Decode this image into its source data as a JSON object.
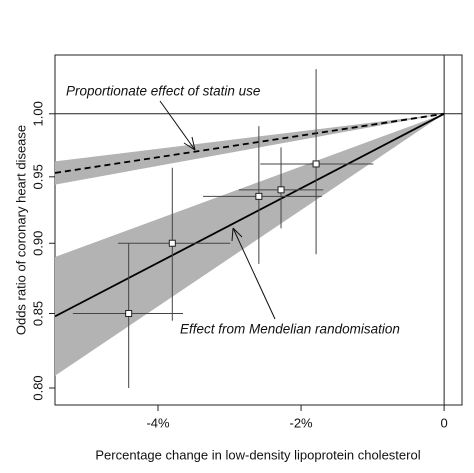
{
  "chart_data": {
    "type": "scatter",
    "x_label": "Percentage change in low-density lipoprotein cholesterol",
    "y_label": "Odds ratio of coronary heart disease",
    "log_y": true,
    "xlim": [
      -5.44,
      0.25
    ],
    "ylim": [
      0.789,
      1.049
    ],
    "xticks": [
      {
        "value": -4,
        "label": "-4%"
      },
      {
        "value": -2,
        "label": "-2%"
      },
      0
    ],
    "yticks": [
      {
        "value": 0.8,
        "label": "0.80"
      },
      {
        "value": 0.85,
        "label": "0.85"
      },
      {
        "value": 0.9,
        "label": "0.90"
      },
      {
        "value": 0.95,
        "label": "0.95"
      },
      {
        "value": 1.0,
        "label": "1.00"
      }
    ],
    "reference_y": 1.0,
    "reference_x": 0,
    "points": {
      "x": [
        -4.41,
        -3.8,
        -2.59,
        -2.28,
        -1.79
      ],
      "y": [
        0.85,
        0.9,
        0.935,
        0.94,
        0.96
      ],
      "x_low": [
        -5.19,
        -4.56,
        -3.37,
        -2.87,
        -2.57
      ],
      "x_high": [
        -3.65,
        -2.99,
        -1.71,
        -1.69,
        -0.99
      ],
      "y_low": [
        0.8,
        0.845,
        0.885,
        0.911,
        0.892
      ],
      "y_high": [
        0.9,
        0.957,
        0.99,
        0.973,
        1.037
      ]
    },
    "lines": [
      {
        "name": "Proportionate effect of statin use",
        "dash": true,
        "x": [
          -5.44,
          0
        ],
        "y": [
          0.953,
          1.0
        ],
        "band_low": [
          0.944,
          1.0
        ],
        "band_high": [
          0.962,
          1.0
        ],
        "band_color": "#b3b3b3"
      },
      {
        "name": "Effect from Mendelian randomisation",
        "dash": false,
        "x": [
          -5.44,
          0
        ],
        "y": [
          0.848,
          1.0
        ],
        "band_low": [
          0.808,
          1.0
        ],
        "band_high": [
          0.89,
          1.0
        ],
        "band_color": "#b3b3b3"
      }
    ]
  }
}
